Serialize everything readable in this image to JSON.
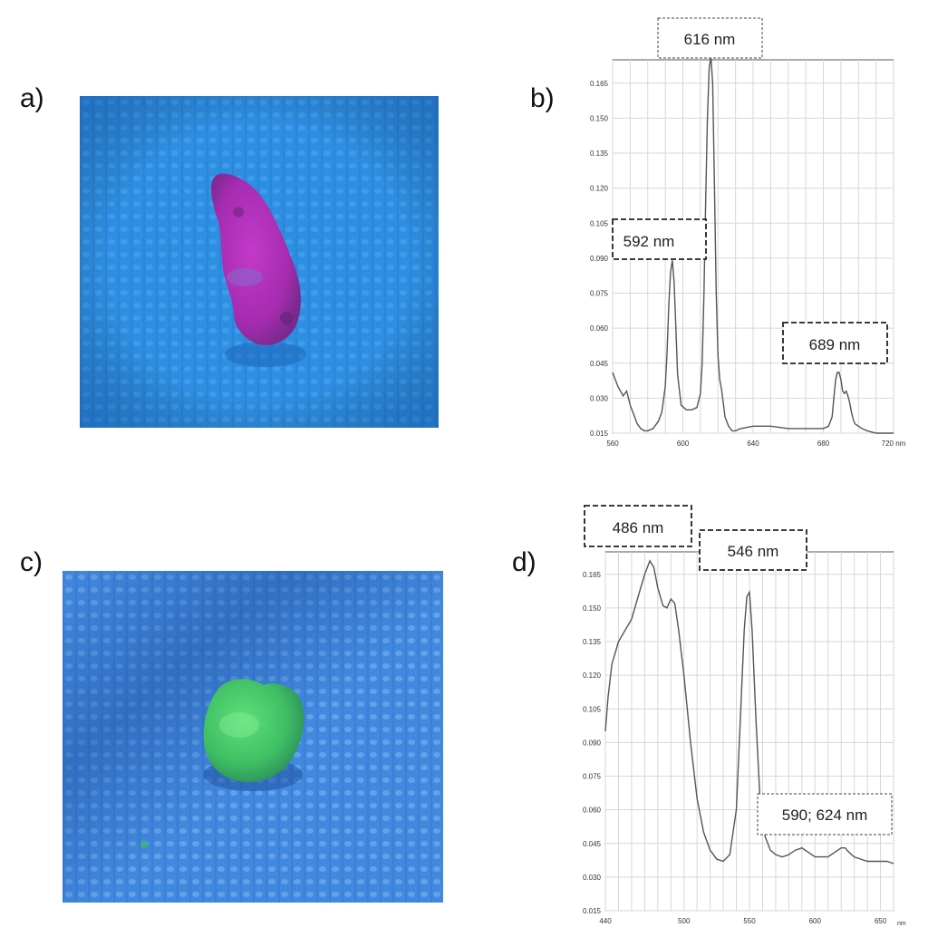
{
  "panels": {
    "a": "a)",
    "b": "b)",
    "c": "c)",
    "d": "d)"
  },
  "photos": {
    "a": {
      "background": "#2f8fe3",
      "specimen_color": "#b02fb8"
    },
    "c": {
      "background": "#3f86dc",
      "specimen_color": "#4fd26a"
    }
  },
  "chart_data": [
    {
      "type": "line",
      "panel": "b",
      "xlim": [
        560,
        720
      ],
      "ylim": [
        0.015,
        0.175
      ],
      "x_ticks": [
        560,
        600,
        640,
        680,
        720
      ],
      "x_tick_labels": [
        "560",
        "600",
        "640",
        "680",
        "720 nm"
      ],
      "y_ticks": [
        0.015,
        0.03,
        0.045,
        0.06,
        0.075,
        0.09,
        0.105,
        0.12,
        0.135,
        0.15,
        0.165
      ],
      "y_tick_labels": [
        "0.015",
        "0.030",
        "0.045",
        "0.060",
        "0.075",
        "0.090",
        "0.105",
        "0.120",
        "0.135",
        "0.150",
        "0.165"
      ],
      "grid": true,
      "series": [
        {
          "x": [
            560,
            563,
            566,
            568,
            570,
            572,
            574,
            576,
            578,
            580,
            583,
            586,
            588,
            590,
            591,
            592,
            593,
            594,
            595,
            596,
            597,
            599,
            602,
            605,
            608,
            610,
            611,
            612,
            613,
            614,
            615,
            616,
            617,
            618,
            619,
            620,
            621,
            622,
            623,
            624,
            626,
            628,
            630,
            633,
            640,
            650,
            660,
            670,
            675,
            680,
            683,
            685,
            686,
            687,
            688,
            689,
            690,
            691,
            692,
            693,
            694,
            695,
            696,
            697,
            698,
            700,
            702,
            705,
            710,
            720
          ],
          "y": [
            0.041,
            0.035,
            0.031,
            0.033,
            0.027,
            0.023,
            0.019,
            0.017,
            0.016,
            0.016,
            0.017,
            0.02,
            0.024,
            0.035,
            0.05,
            0.07,
            0.084,
            0.089,
            0.08,
            0.06,
            0.04,
            0.027,
            0.025,
            0.025,
            0.026,
            0.032,
            0.045,
            0.075,
            0.115,
            0.15,
            0.172,
            0.176,
            0.165,
            0.12,
            0.075,
            0.048,
            0.038,
            0.034,
            0.028,
            0.022,
            0.018,
            0.016,
            0.016,
            0.017,
            0.018,
            0.018,
            0.017,
            0.017,
            0.017,
            0.017,
            0.018,
            0.022,
            0.03,
            0.038,
            0.041,
            0.041,
            0.038,
            0.033,
            0.032,
            0.033,
            0.031,
            0.028,
            0.024,
            0.021,
            0.019,
            0.018,
            0.017,
            0.016,
            0.015,
            0.015
          ]
        }
      ],
      "annotations": [
        {
          "text": "616 nm"
        },
        {
          "text": "592 nm"
        },
        {
          "text": "689 nm"
        }
      ]
    },
    {
      "type": "line",
      "panel": "d",
      "xlim": [
        440,
        660
      ],
      "ylim": [
        0.015,
        0.175
      ],
      "x_ticks": [
        440,
        500,
        550,
        600,
        650
      ],
      "x_tick_labels": [
        "440",
        "500",
        "550",
        "600",
        "650"
      ],
      "x_unit": "nm",
      "y_ticks": [
        0.015,
        0.03,
        0.045,
        0.06,
        0.075,
        0.09,
        0.105,
        0.12,
        0.135,
        0.15,
        0.165
      ],
      "y_tick_labels": [
        "0.015",
        "0.030",
        "0.045",
        "0.060",
        "0.075",
        "0.090",
        "0.105",
        "0.120",
        "0.135",
        "0.150",
        "0.165"
      ],
      "grid": true,
      "series": [
        {
          "x": [
            440,
            442,
            445,
            450,
            455,
            460,
            465,
            470,
            474,
            477,
            480,
            484,
            487,
            490,
            493,
            496,
            500,
            505,
            510,
            515,
            520,
            525,
            530,
            535,
            540,
            543,
            546,
            548,
            550,
            552,
            555,
            558,
            562,
            566,
            570,
            575,
            580,
            585,
            590,
            595,
            600,
            605,
            610,
            615,
            620,
            623,
            626,
            630,
            635,
            640,
            645,
            650,
            655,
            660
          ],
          "y": [
            0.095,
            0.11,
            0.125,
            0.135,
            0.14,
            0.145,
            0.155,
            0.165,
            0.171,
            0.168,
            0.159,
            0.151,
            0.15,
            0.154,
            0.152,
            0.14,
            0.12,
            0.09,
            0.065,
            0.05,
            0.042,
            0.038,
            0.037,
            0.04,
            0.06,
            0.1,
            0.14,
            0.155,
            0.157,
            0.14,
            0.1,
            0.065,
            0.048,
            0.042,
            0.04,
            0.039,
            0.04,
            0.042,
            0.043,
            0.041,
            0.039,
            0.039,
            0.039,
            0.041,
            0.043,
            0.043,
            0.041,
            0.039,
            0.038,
            0.037,
            0.037,
            0.037,
            0.037,
            0.036
          ]
        }
      ],
      "annotations": [
        {
          "text": "486 nm"
        },
        {
          "text": "546 nm"
        },
        {
          "text": "590; 624 nm"
        }
      ]
    }
  ]
}
